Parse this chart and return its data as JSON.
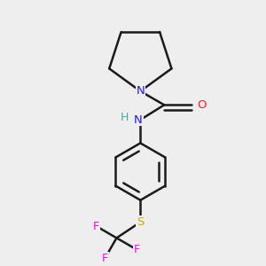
{
  "background_color": "#eeeeee",
  "atom_colors": {
    "C": "#000000",
    "N_ring": "#1a1aff",
    "N_amide": "#1a1aff",
    "H": "#4da6a6",
    "O": "#ff2020",
    "S": "#ccaa00",
    "F": "#ff00ff"
  },
  "bond_color": "#1a1a1a",
  "bond_width": 1.8,
  "figsize": [
    3.0,
    3.0
  ],
  "dpi": 100,
  "xlim": [
    0.0,
    1.0
  ],
  "ylim": [
    -0.15,
    1.05
  ]
}
